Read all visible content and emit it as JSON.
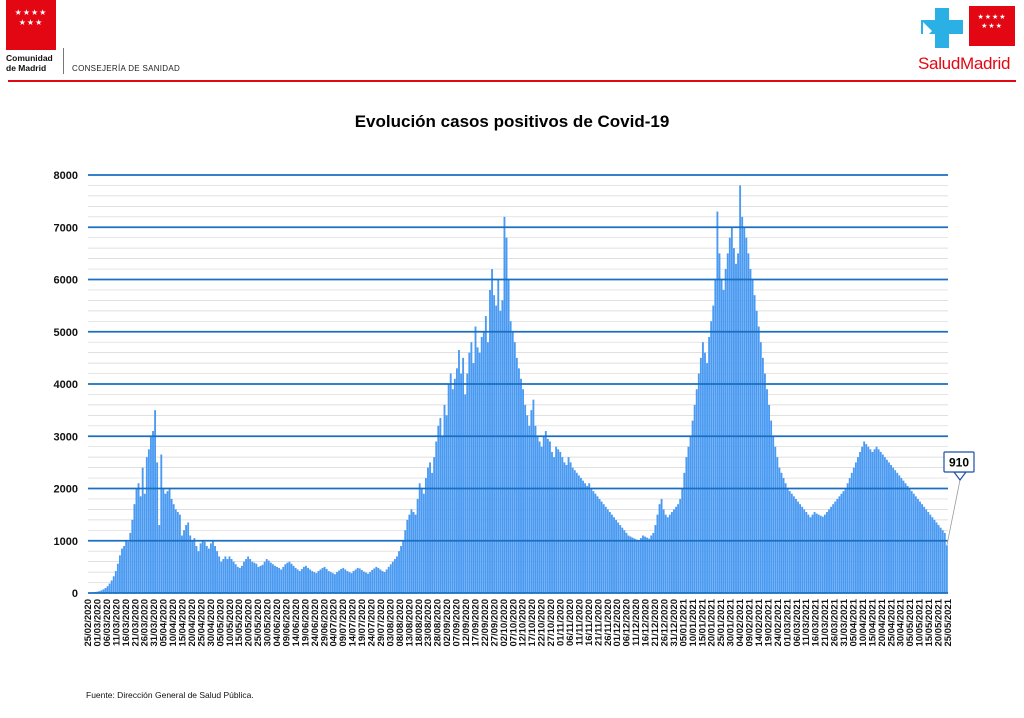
{
  "header": {
    "left_logo_stars": "★★★★\n★★★",
    "left_org_line1": "Comunidad",
    "left_org_line2": "de Madrid",
    "department": "CONSEJERÍA DE SANIDAD",
    "right_logo_stars": "★★★★\n★★★",
    "right_brand": "SaludMadrid",
    "brand_red": "#e30613",
    "brand_blue": "#2bb0e6"
  },
  "chart_data": {
    "type": "bar",
    "title": "Evolución casos positivos de Covid-19",
    "xlabel": "",
    "ylabel": "",
    "ylim": [
      0,
      8000
    ],
    "yticks": [
      0,
      1000,
      2000,
      3000,
      4000,
      5000,
      6000,
      7000,
      8000
    ],
    "grid": true,
    "bar_color": "#4a9af2",
    "grid_color": "#1a6fc1",
    "x_start": "2020-02-25",
    "x_end": "2021-05-25",
    "x_tick_labels": [
      "25/02/2020",
      "01/03/2020",
      "06/03/2020",
      "11/03/2020",
      "16/03/2020",
      "21/03/2020",
      "26/03/2020",
      "31/03/2020",
      "05/04/2020",
      "10/04/2020",
      "15/04/2020",
      "20/04/2020",
      "25/04/2020",
      "30/04/2020",
      "05/05/2020",
      "10/05/2020",
      "15/05/2020",
      "20/05/2020",
      "25/05/2020",
      "30/05/2020",
      "04/06/2020",
      "09/06/2020",
      "14/06/2020",
      "19/06/2020",
      "24/06/2020",
      "29/06/2020",
      "04/07/2020",
      "09/07/2020",
      "14/07/2020",
      "19/07/2020",
      "24/07/2020",
      "29/07/2020",
      "03/08/2020",
      "08/08/2020",
      "13/08/2020",
      "18/08/2020",
      "23/08/2020",
      "28/08/2020",
      "02/09/2020",
      "07/09/2020",
      "12/09/2020",
      "17/09/2020",
      "22/09/2020",
      "27/09/2020",
      "02/10/2020",
      "07/10/2020",
      "12/10/2020",
      "17/10/2020",
      "22/10/2020",
      "27/10/2020",
      "01/11/2020",
      "06/11/2020",
      "11/11/2020",
      "16/11/2020",
      "21/11/2020",
      "26/11/2020",
      "01/12/2020",
      "06/12/2020",
      "11/12/2020",
      "16/12/2020",
      "21/12/2020",
      "26/12/2020",
      "31/12/2020",
      "05/01/2021",
      "10/01/2021",
      "15/01/2021",
      "20/01/2021",
      "25/01/2021",
      "30/01/2021",
      "04/02/2021",
      "09/02/2021",
      "14/02/2021",
      "19/02/2021",
      "24/02/2021",
      "01/03/2021",
      "06/03/2021",
      "11/03/2021",
      "16/03/2021",
      "21/03/2021",
      "26/03/2021",
      "31/03/2021",
      "05/04/2021",
      "10/04/2021",
      "15/04/2021",
      "20/04/2021",
      "25/04/2021",
      "30/04/2021",
      "05/05/2021",
      "10/05/2021",
      "15/05/2021",
      "20/05/2021",
      "25/05/2021"
    ],
    "series": [
      {
        "values": [
          5,
          8,
          12,
          18,
          25,
          35,
          50,
          70,
          95,
          130,
          180,
          240,
          320,
          420,
          560,
          720,
          850,
          900,
          1000,
          980,
          1150,
          1400,
          1700,
          2000,
          2100,
          1850,
          2400,
          1900,
          2600,
          2750,
          3000,
          3100,
          3500,
          2500,
          1300,
          2650,
          2000,
          1900,
          1950,
          2000,
          1800,
          1700,
          1600,
          1550,
          1500,
          1100,
          1200,
          1300,
          1350,
          1100,
          1000,
          1050,
          900,
          800,
          950,
          1000,
          980,
          900,
          850,
          950,
          1000,
          900,
          800,
          700,
          600,
          650,
          700,
          650,
          700,
          650,
          600,
          550,
          500,
          480,
          520,
          600,
          650,
          700,
          650,
          600,
          580,
          560,
          500,
          520,
          540,
          600,
          650,
          620,
          580,
          550,
          520,
          500,
          480,
          450,
          500,
          550,
          580,
          600,
          560,
          520,
          480,
          450,
          420,
          460,
          500,
          520,
          480,
          450,
          420,
          400,
          380,
          420,
          450,
          480,
          500,
          460,
          420,
          400,
          380,
          360,
          400,
          430,
          460,
          480,
          450,
          420,
          400,
          380,
          420,
          450,
          480,
          470,
          440,
          410,
          390,
          370,
          400,
          440,
          470,
          500,
          480,
          450,
          420,
          400,
          450,
          500,
          550,
          600,
          650,
          700,
          800,
          900,
          1000,
          1200,
          1400,
          1500,
          1600,
          1550,
          1500,
          1800,
          2100,
          2000,
          1900,
          2200,
          2400,
          2500,
          2300,
          2600,
          2900,
          3200,
          3350,
          3000,
          3600,
          3400,
          4000,
          4200,
          3900,
          4100,
          4300,
          4650,
          4200,
          4500,
          3800,
          4200,
          4600,
          4800,
          4400,
          5100,
          4700,
          4600,
          4900,
          5000,
          5300,
          4800,
          5800,
          6200,
          5700,
          5500,
          6000,
          5400,
          5600,
          7200,
          6800,
          6000,
          5200,
          5000,
          4800,
          4500,
          4300,
          4100,
          3900,
          3600,
          3400,
          3200,
          3500,
          3700,
          3200,
          3000,
          2900,
          2800,
          3000,
          3100,
          2950,
          2900,
          2700,
          2600,
          2800,
          2750,
          2700,
          2600,
          2500,
          2450,
          2600,
          2500,
          2400,
          2350,
          2300,
          2250,
          2200,
          2150,
          2100,
          2050,
          2100,
          2000,
          1950,
          1900,
          1850,
          1800,
          1750,
          1700,
          1650,
          1600,
          1550,
          1500,
          1450,
          1400,
          1350,
          1300,
          1250,
          1200,
          1150,
          1100,
          1080,
          1060,
          1040,
          1020,
          1000,
          1050,
          1100,
          1080,
          1060,
          1040,
          1100,
          1150,
          1300,
          1500,
          1700,
          1800,
          1600,
          1500,
          1450,
          1500,
          1550,
          1600,
          1650,
          1700,
          1800,
          2000,
          2300,
          2600,
          2800,
          3000,
          3300,
          3600,
          3900,
          4200,
          4500,
          4800,
          4600,
          4400,
          4900,
          5200,
          5500,
          6000,
          7300,
          6500,
          6000,
          5800,
          6200,
          6500,
          6800,
          7000,
          6600,
          6300,
          6500,
          7800,
          7200,
          7000,
          6800,
          6500,
          6200,
          6000,
          5700,
          5400,
          5100,
          4800,
          4500,
          4200,
          3900,
          3600,
          3300,
          3000,
          2800,
          2600,
          2400,
          2300,
          2200,
          2100,
          2000,
          1950,
          1900,
          1850,
          1800,
          1750,
          1700,
          1650,
          1600,
          1550,
          1500,
          1450,
          1500,
          1550,
          1520,
          1500,
          1480,
          1460,
          1500,
          1550,
          1600,
          1650,
          1700,
          1750,
          1800,
          1850,
          1900,
          1950,
          2000,
          2100,
          2200,
          2300,
          2400,
          2500,
          2600,
          2700,
          2800,
          2900,
          2850,
          2800,
          2750,
          2700,
          2750,
          2800,
          2750,
          2700,
          2650,
          2600,
          2550,
          2500,
          2450,
          2400,
          2350,
          2300,
          2250,
          2200,
          2150,
          2100,
          2050,
          2000,
          1950,
          1900,
          1850,
          1800,
          1750,
          1700,
          1650,
          1600,
          1550,
          1500,
          1450,
          1400,
          1350,
          1300,
          1250,
          1200,
          1150,
          910
        ]
      }
    ],
    "annotation": {
      "label": "910",
      "value": 910,
      "date": "25/05/2021"
    }
  },
  "footer": {
    "source": "Fuente: Dirección General de Salud Pública."
  }
}
